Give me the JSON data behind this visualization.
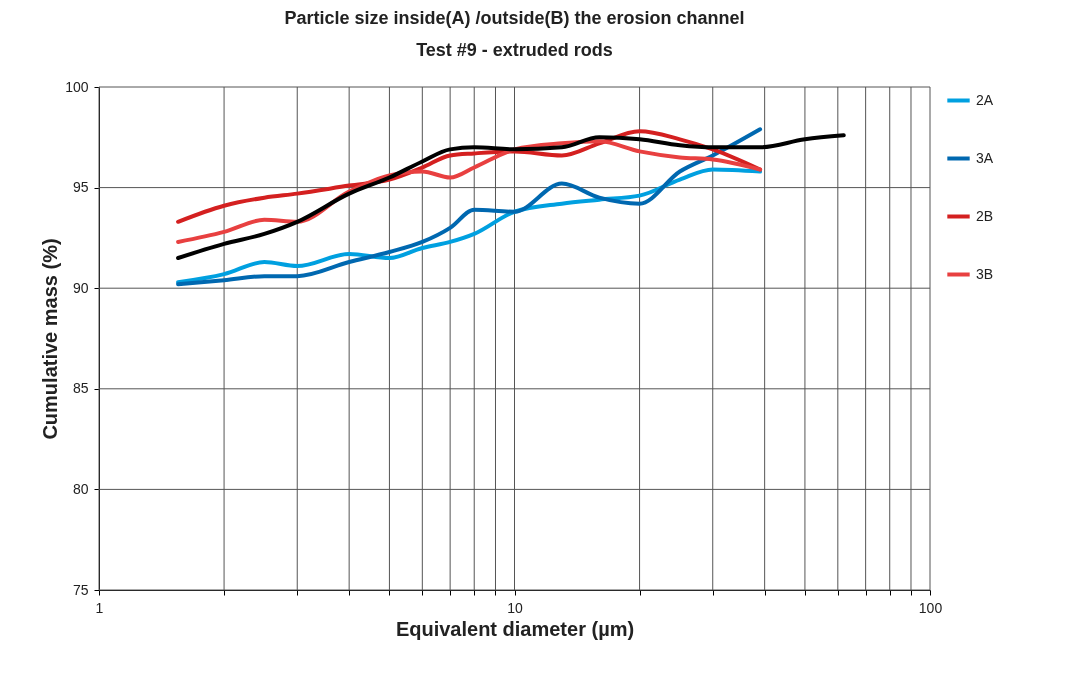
{
  "chart_data": {
    "type": "line",
    "title": "Particle size inside(A) /outside(B) the erosion channel",
    "subtitle": "Test #9 - extruded rods",
    "xlabel": "Equivalent diameter (µm)",
    "ylabel": "Cumulative mass (%)",
    "log": "x",
    "grid": true,
    "legend": "right",
    "line_style": "solid",
    "marker": "none",
    "xlim": [
      1,
      100
    ],
    "xticks": [
      1,
      {
        "value": 2,
        "label": null
      },
      {
        "value": 3,
        "label": null
      },
      {
        "value": 4,
        "label": null
      },
      {
        "value": 5,
        "label": null
      },
      {
        "value": 6,
        "label": null
      },
      {
        "value": 7,
        "label": null
      },
      {
        "value": 8,
        "label": null
      },
      {
        "value": 9,
        "label": null
      },
      10,
      {
        "value": 20,
        "label": null
      },
      {
        "value": 30,
        "label": null
      },
      {
        "value": 40,
        "label": null
      },
      {
        "value": 50,
        "label": null
      },
      {
        "value": 60,
        "label": null
      },
      {
        "value": 70,
        "label": null
      },
      {
        "value": 80,
        "label": null
      },
      {
        "value": 90,
        "label": null
      },
      100
    ],
    "ylim": [
      75,
      100
    ],
    "yticks": [
      75,
      80,
      85,
      90,
      95,
      100
    ],
    "x": [
      1.55,
      2,
      2.5,
      3,
      4,
      5,
      6,
      7,
      8,
      10,
      13,
      16,
      20,
      25,
      30,
      39
    ],
    "series": [
      {
        "name": "2A",
        "color": "#00a0e0",
        "values": [
          90.3,
          90.7,
          91.3,
          91.1,
          91.7,
          91.5,
          92,
          92.3,
          92.7,
          93.8,
          94.2,
          94.4,
          94.6,
          95.4,
          95.9,
          95.8
        ]
      },
      {
        "name": "3A",
        "color": "#0068b0",
        "values": [
          90.2,
          90.4,
          90.6,
          90.6,
          91.3,
          91.8,
          92.3,
          93,
          93.9,
          93.8,
          95.2,
          94.5,
          94.2,
          95.8,
          96.6,
          97.9
        ]
      },
      {
        "name": "2B",
        "color": "#d42020",
        "values": [
          93.3,
          94.1,
          94.5,
          94.7,
          95.1,
          95.4,
          96,
          96.6,
          96.7,
          96.8,
          96.6,
          97.2,
          97.8,
          97.4,
          96.9,
          95.9
        ]
      },
      {
        "name": "3B",
        "color": "#e84040",
        "values": [
          92.3,
          92.8,
          93.4,
          93.3,
          94.8,
          95.6,
          95.8,
          95.5,
          96,
          96.9,
          97.2,
          97.3,
          96.8,
          96.5,
          96.4,
          95.9
        ]
      },
      {
        "color": "#000000",
        "x": [
          1.55,
          2,
          2.5,
          3,
          4,
          5,
          6,
          7,
          8,
          10,
          13,
          16,
          20,
          25,
          30,
          39,
          50,
          62
        ],
        "values": [
          91.5,
          92.2,
          92.7,
          93.3,
          94.7,
          95.5,
          96.3,
          96.9,
          97,
          96.9,
          97,
          97.5,
          97.4,
          97.1,
          97,
          97,
          97.4,
          97.6
        ]
      }
    ]
  }
}
